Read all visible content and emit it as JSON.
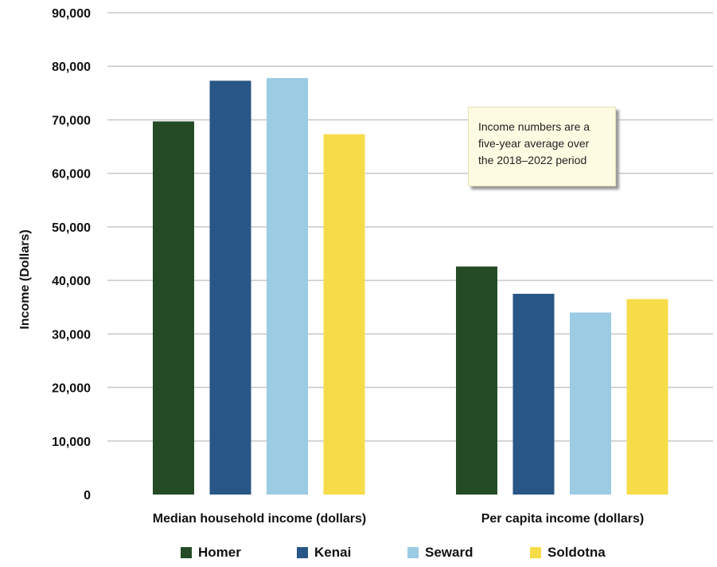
{
  "chart_data": {
    "type": "bar",
    "title": "",
    "xlabel": "",
    "ylabel": "Income (Dollars)",
    "ylim": [
      0,
      90000
    ],
    "yticks": [
      "0",
      "10,000",
      "20,000",
      "30,000",
      "40,000",
      "50,000",
      "60,000",
      "70,000",
      "80,000",
      "90,000"
    ],
    "grid": true,
    "legend_position": "bottom",
    "categories": [
      "Median household income (dollars)",
      "Per capita income (dollars)"
    ],
    "series": [
      {
        "name": "Homer",
        "values": [
          69700,
          42600
        ],
        "color": "#244b25"
      },
      {
        "name": "Kenai",
        "values": [
          77300,
          37500
        ],
        "color": "#285686"
      },
      {
        "name": "Seward",
        "values": [
          77800,
          34000
        ],
        "color": "#9ccbe4"
      },
      {
        "name": "Soldotna",
        "values": [
          67300,
          36500
        ],
        "color": "#f6dc48"
      }
    ],
    "annotation": [
      "Income numbers are a",
      "five-year average over",
      "the 2018–2022 period"
    ]
  }
}
